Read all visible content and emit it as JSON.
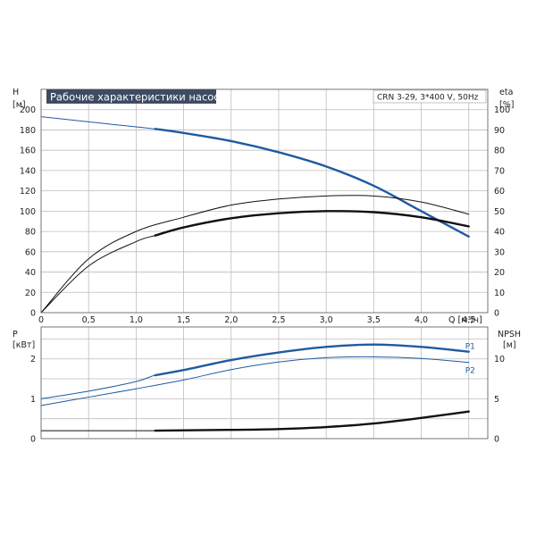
{
  "chart_data": [
    {
      "type": "line",
      "title": "Рабочие характеристики насоса",
      "subtitle": "CRN 3-29, 3*400 V, 50Hz",
      "xlabel": "Q [м³/ч]",
      "ylabel_left": [
        "H",
        "[м]"
      ],
      "ylabel_right": [
        "eta",
        "[%]"
      ],
      "xlim": [
        0,
        4.7
      ],
      "ylim_left": [
        0,
        220
      ],
      "ylim_right": [
        0,
        110
      ],
      "x_ticks": [
        "0",
        "0,5",
        "1,0",
        "1,5",
        "2,0",
        "2,5",
        "3,0",
        "3,5",
        "4,0",
        "4,5"
      ],
      "x_tick_values": [
        0,
        0.5,
        1.0,
        1.5,
        2.0,
        2.5,
        3.0,
        3.5,
        4.0,
        4.5
      ],
      "y_ticks_left": [
        "0",
        "20",
        "40",
        "60",
        "80",
        "100",
        "120",
        "140",
        "160",
        "180",
        "200"
      ],
      "y_ticks_right": [
        "0",
        "10",
        "20",
        "30",
        "40",
        "50",
        "60",
        "70",
        "80",
        "90",
        "100"
      ],
      "grid": true,
      "series": [
        {
          "axis": "left",
          "color": "#1f5ba0",
          "x": [
            0,
            0.5,
            1.0,
            1.2,
            1.5,
            2.0,
            2.5,
            3.0,
            3.5,
            4.0,
            4.5
          ],
          "y": [
            193,
            188,
            183,
            181,
            177,
            169,
            158,
            144,
            125,
            100,
            75
          ],
          "bold_from": 1.2
        },
        {
          "axis": "right",
          "color": "#111111",
          "x": [
            0,
            0.5,
            1.0,
            1.5,
            2.0,
            2.5,
            3.0,
            3.5,
            4.0,
            4.5
          ],
          "y": [
            0,
            26.5,
            40,
            47,
            53,
            56,
            57.5,
            57.5,
            54.5,
            48.5
          ]
        },
        {
          "axis": "right",
          "color": "#111111",
          "x": [
            0,
            0.5,
            1.0,
            1.2,
            1.5,
            2.0,
            2.5,
            3.0,
            3.5,
            4.0,
            4.5
          ],
          "y": [
            0,
            23,
            35,
            38,
            42,
            46.5,
            49,
            50,
            49.5,
            47,
            42.5
          ],
          "bold_from": 1.2
        }
      ]
    },
    {
      "type": "line",
      "ylabel_left": [
        "P",
        "[кВт]"
      ],
      "ylabel_right": [
        "NPSH",
        "[м]"
      ],
      "xlim": [
        0,
        4.7
      ],
      "ylim_left": [
        0,
        2.8
      ],
      "ylim_right": [
        0,
        14
      ],
      "y_ticks_left": [
        "0",
        "1",
        "2"
      ],
      "y_tick_values_left": [
        0,
        1,
        2
      ],
      "y_ticks_right": [
        "0",
        "5",
        "10"
      ],
      "y_tick_values_right": [
        0,
        5,
        10
      ],
      "grid": true,
      "series": [
        {
          "name": "P1",
          "axis": "left",
          "color": "#1f5ba0",
          "x": [
            0,
            0.5,
            1.0,
            1.2,
            1.5,
            2.0,
            2.5,
            3.0,
            3.5,
            4.0,
            4.5
          ],
          "y": [
            1.0,
            1.19,
            1.43,
            1.59,
            1.72,
            1.97,
            2.16,
            2.3,
            2.36,
            2.3,
            2.18
          ],
          "bold_from": 1.2
        },
        {
          "name": "P2",
          "axis": "left",
          "color": "#1f5ba0",
          "x": [
            0,
            0.5,
            1.0,
            1.5,
            2.0,
            2.5,
            3.0,
            3.5,
            4.0,
            4.5
          ],
          "y": [
            0.83,
            1.04,
            1.25,
            1.47,
            1.73,
            1.92,
            2.03,
            2.05,
            2.01,
            1.91
          ]
        },
        {
          "axis": "right",
          "color": "#111111",
          "x": [
            0,
            1.2,
            2.0,
            2.5,
            3.0,
            3.5,
            4.0,
            4.5
          ],
          "y": [
            1.0,
            1.0,
            1.1,
            1.2,
            1.45,
            1.9,
            2.6,
            3.4
          ],
          "bold_from": 1.2
        }
      ]
    }
  ]
}
